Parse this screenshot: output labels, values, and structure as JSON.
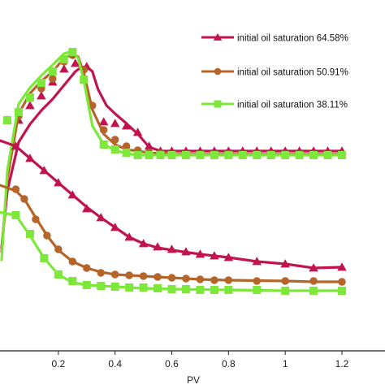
{
  "chart_data": {
    "type": "line",
    "xlabel": "PV",
    "ylabel": "",
    "title": "",
    "xlim": [
      -0.03,
      1.25
    ],
    "x_ticks": [
      "0.2",
      "0.4",
      "0.6",
      "0.8",
      "1",
      "1.2"
    ],
    "x_tick_values": [
      0.2,
      0.4,
      0.6,
      0.8,
      1.0,
      1.2
    ],
    "grid": false,
    "legend_position": "top-right",
    "series": [
      {
        "name": "initial oil saturation 64.58%",
        "group": "upper",
        "color": "#c0134f",
        "marker": "triangle",
        "line": [
          [
            0,
            305
          ],
          [
            0.02,
            235
          ],
          [
            0.06,
            175
          ],
          [
            0.1,
            153
          ],
          [
            0.14,
            136
          ],
          [
            0.18,
            122
          ],
          [
            0.22,
            105
          ],
          [
            0.26,
            88
          ],
          [
            0.28,
            83
          ],
          [
            0.3,
            82
          ],
          [
            0.32,
            88
          ],
          [
            0.34,
            110
          ],
          [
            0.37,
            130
          ],
          [
            0.4,
            140
          ],
          [
            0.44,
            152
          ],
          [
            0.48,
            165
          ],
          [
            0.52,
            181
          ],
          [
            0.56,
            186
          ],
          [
            0.6,
            186
          ],
          [
            0.8,
            186
          ],
          [
            1.0,
            186
          ],
          [
            1.2,
            186
          ]
        ],
        "points": [
          [
            0.02,
            148
          ],
          [
            0.06,
            148
          ],
          [
            0.1,
            130
          ],
          [
            0.14,
            118
          ],
          [
            0.18,
            101
          ],
          [
            0.22,
            85
          ],
          [
            0.26,
            78
          ],
          [
            0.3,
            82
          ],
          [
            0.36,
            150
          ],
          [
            0.4,
            152
          ],
          [
            0.44,
            155
          ],
          [
            0.48,
            163
          ],
          [
            0.52,
            180
          ],
          [
            0.56,
            186
          ],
          [
            0.6,
            186
          ],
          [
            0.65,
            186
          ],
          [
            0.7,
            186
          ],
          [
            0.75,
            186
          ],
          [
            0.8,
            186
          ],
          [
            0.85,
            186
          ],
          [
            0.9,
            186
          ],
          [
            0.95,
            186
          ],
          [
            1.0,
            186
          ],
          [
            1.05,
            186
          ],
          [
            1.1,
            186
          ],
          [
            1.15,
            186
          ],
          [
            1.2,
            186
          ]
        ]
      },
      {
        "name": "initial oil saturation 50.91%",
        "group": "upper",
        "color": "#b5652a",
        "marker": "circle",
        "line": [
          [
            0,
            310
          ],
          [
            0.02,
            220
          ],
          [
            0.06,
            140
          ],
          [
            0.1,
            115
          ],
          [
            0.14,
            100
          ],
          [
            0.18,
            88
          ],
          [
            0.22,
            72
          ],
          [
            0.25,
            66
          ],
          [
            0.27,
            70
          ],
          [
            0.29,
            90
          ],
          [
            0.32,
            135
          ],
          [
            0.36,
            165
          ],
          [
            0.4,
            178
          ],
          [
            0.44,
            184
          ],
          [
            0.48,
            186
          ],
          [
            0.52,
            188
          ],
          [
            0.6,
            190
          ],
          [
            0.8,
            190
          ],
          [
            1.0,
            190
          ],
          [
            1.2,
            190
          ]
        ],
        "points": [
          [
            0.02,
            148
          ],
          [
            0.06,
            143
          ],
          [
            0.1,
            120
          ],
          [
            0.14,
            109
          ],
          [
            0.18,
            97
          ],
          [
            0.22,
            76
          ],
          [
            0.25,
            68
          ],
          [
            0.29,
            86
          ],
          [
            0.32,
            130
          ],
          [
            0.36,
            160
          ],
          [
            0.4,
            172
          ],
          [
            0.44,
            180
          ],
          [
            0.48,
            185
          ],
          [
            0.52,
            188
          ],
          [
            0.56,
            189
          ],
          [
            0.6,
            190
          ],
          [
            0.65,
            190
          ],
          [
            0.7,
            190
          ],
          [
            0.75,
            190
          ],
          [
            0.8,
            190
          ],
          [
            0.85,
            190
          ],
          [
            0.9,
            190
          ],
          [
            0.95,
            190
          ],
          [
            1.0,
            190
          ],
          [
            1.05,
            190
          ],
          [
            1.1,
            190
          ],
          [
            1.15,
            190
          ],
          [
            1.2,
            190
          ]
        ]
      },
      {
        "name": "initial oil saturation 38.11%",
        "group": "upper",
        "color": "#7de83a",
        "marker": "square",
        "line": [
          [
            0,
            320
          ],
          [
            0.02,
            210
          ],
          [
            0.06,
            128
          ],
          [
            0.1,
            108
          ],
          [
            0.14,
            93
          ],
          [
            0.18,
            80
          ],
          [
            0.22,
            66
          ],
          [
            0.25,
            63
          ],
          [
            0.27,
            72
          ],
          [
            0.29,
            100
          ],
          [
            0.32,
            155
          ],
          [
            0.36,
            178
          ],
          [
            0.4,
            185
          ],
          [
            0.44,
            189
          ],
          [
            0.48,
            191
          ],
          [
            0.6,
            191
          ],
          [
            0.8,
            191
          ],
          [
            1.0,
            191
          ],
          [
            1.2,
            191
          ]
        ],
        "points": [
          [
            0.02,
            148
          ],
          [
            0.06,
            138
          ],
          [
            0.1,
            120
          ],
          [
            0.14,
            102
          ],
          [
            0.18,
            88
          ],
          [
            0.22,
            73
          ],
          [
            0.25,
            64
          ],
          [
            0.29,
            98
          ],
          [
            0.36,
            178
          ],
          [
            0.4,
            184
          ],
          [
            0.44,
            188
          ],
          [
            0.48,
            191
          ],
          [
            0.52,
            191
          ],
          [
            0.56,
            191
          ],
          [
            0.6,
            191
          ],
          [
            0.65,
            191
          ],
          [
            0.7,
            191
          ],
          [
            0.75,
            191
          ],
          [
            0.8,
            191
          ],
          [
            0.85,
            191
          ],
          [
            0.9,
            191
          ],
          [
            0.95,
            191
          ],
          [
            1.0,
            191
          ],
          [
            1.05,
            191
          ],
          [
            1.1,
            191
          ],
          [
            1.15,
            191
          ],
          [
            1.2,
            191
          ]
        ]
      },
      {
        "name": "",
        "group": "lower",
        "color": "#c0134f",
        "marker": "triangle",
        "line": [
          [
            -0.03,
            170
          ],
          [
            0.05,
            180
          ],
          [
            0.1,
            195
          ],
          [
            0.15,
            210
          ],
          [
            0.2,
            225
          ],
          [
            0.25,
            240
          ],
          [
            0.3,
            255
          ],
          [
            0.35,
            268
          ],
          [
            0.4,
            280
          ],
          [
            0.45,
            292
          ],
          [
            0.5,
            300
          ],
          [
            0.55,
            305
          ],
          [
            0.6,
            308
          ],
          [
            0.7,
            313
          ],
          [
            0.8,
            317
          ],
          [
            0.9,
            322
          ],
          [
            1.0,
            325
          ],
          [
            1.1,
            330
          ],
          [
            1.2,
            329
          ]
        ],
        "points": [
          [
            0.05,
            180
          ],
          [
            0.1,
            195
          ],
          [
            0.15,
            210
          ],
          [
            0.2,
            225
          ],
          [
            0.25,
            240
          ],
          [
            0.3,
            257
          ],
          [
            0.35,
            268
          ],
          [
            0.4,
            280
          ],
          [
            0.45,
            292
          ],
          [
            0.5,
            300
          ],
          [
            0.55,
            304
          ],
          [
            0.6,
            307
          ],
          [
            0.65,
            310
          ],
          [
            0.7,
            313
          ],
          [
            0.75,
            315
          ],
          [
            0.8,
            317
          ],
          [
            0.9,
            322
          ],
          [
            1.0,
            325
          ],
          [
            1.1,
            330
          ],
          [
            1.2,
            329
          ]
        ]
      },
      {
        "name": "",
        "group": "lower",
        "color": "#b5652a",
        "marker": "circle",
        "line": [
          [
            -0.03,
            225
          ],
          [
            0.05,
            235
          ],
          [
            0.08,
            245
          ],
          [
            0.12,
            268
          ],
          [
            0.16,
            290
          ],
          [
            0.2,
            308
          ],
          [
            0.25,
            322
          ],
          [
            0.3,
            330
          ],
          [
            0.35,
            335
          ],
          [
            0.4,
            338
          ],
          [
            0.5,
            340
          ],
          [
            0.6,
            342
          ],
          [
            0.7,
            344
          ],
          [
            0.8,
            345
          ],
          [
            1.0,
            346
          ],
          [
            1.1,
            347
          ],
          [
            1.2,
            347
          ]
        ],
        "points": [
          [
            0.05,
            233
          ],
          [
            0.08,
            245
          ],
          [
            0.12,
            270
          ],
          [
            0.16,
            290
          ],
          [
            0.2,
            307
          ],
          [
            0.25,
            322
          ],
          [
            0.3,
            330
          ],
          [
            0.35,
            336
          ],
          [
            0.4,
            338
          ],
          [
            0.45,
            339
          ],
          [
            0.5,
            340
          ],
          [
            0.55,
            341
          ],
          [
            0.6,
            342
          ],
          [
            0.65,
            343
          ],
          [
            0.7,
            344
          ],
          [
            0.75,
            345
          ],
          [
            0.8,
            345
          ],
          [
            0.9,
            346
          ],
          [
            1.0,
            346
          ],
          [
            1.1,
            346
          ],
          [
            1.2,
            347
          ]
        ]
      },
      {
        "name": "",
        "group": "lower",
        "color": "#7de83a",
        "marker": "square",
        "line": [
          [
            -0.03,
            260
          ],
          [
            0.05,
            265
          ],
          [
            0.1,
            290
          ],
          [
            0.15,
            318
          ],
          [
            0.2,
            338
          ],
          [
            0.25,
            348
          ],
          [
            0.3,
            351
          ],
          [
            0.35,
            352
          ],
          [
            0.4,
            353
          ],
          [
            0.5,
            355
          ],
          [
            0.6,
            356
          ],
          [
            0.8,
            357
          ],
          [
            1.0,
            358
          ],
          [
            1.2,
            358
          ]
        ],
        "points": [
          [
            0.05,
            265
          ],
          [
            0.1,
            288
          ],
          [
            0.15,
            318
          ],
          [
            0.2,
            338
          ],
          [
            0.25,
            346
          ],
          [
            0.3,
            351
          ],
          [
            0.35,
            352
          ],
          [
            0.4,
            353
          ],
          [
            0.45,
            354
          ],
          [
            0.5,
            354
          ],
          [
            0.55,
            355
          ],
          [
            0.6,
            356
          ],
          [
            0.65,
            356
          ],
          [
            0.7,
            357
          ],
          [
            0.75,
            357
          ],
          [
            0.8,
            357
          ],
          [
            0.9,
            357
          ],
          [
            1.0,
            358
          ],
          [
            1.1,
            358
          ],
          [
            1.2,
            358
          ]
        ]
      }
    ]
  }
}
